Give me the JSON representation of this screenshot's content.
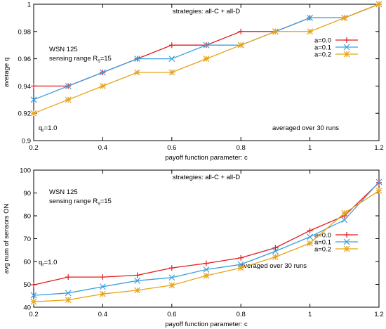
{
  "chart_data": [
    {
      "type": "line",
      "title": "strategies: all-C + all-D",
      "xlabel": "payoff function parameter: c",
      "ylabel": "average q",
      "xlim": [
        0.2,
        1.2
      ],
      "ylim": [
        0.9,
        1.0
      ],
      "xticks": [
        "0.2",
        "0.4",
        "0.6",
        "0.8",
        "1",
        "1.2"
      ],
      "yticks": [
        "0.9",
        "0.92",
        "0.94",
        "0.96",
        "0.98",
        "1"
      ],
      "grid": false,
      "legend_position": "right",
      "annotations": {
        "network": "WSN 125",
        "sensing_prefix": "sensing range R",
        "sensing_sub": "s",
        "sensing_suffix": "=15",
        "qr_prefix": "q",
        "qr_sub": "r",
        "qr_suffix": "=1.0",
        "runs": "averaged over 30 runs"
      },
      "x": [
        0.2,
        0.3,
        0.4,
        0.5,
        0.6,
        0.7,
        0.8,
        0.9,
        1.0,
        1.1,
        1.2
      ],
      "series": [
        {
          "name": "a=0.0",
          "color": "#e41a1c",
          "marker": "plus",
          "values": [
            0.94,
            0.94,
            0.95,
            0.96,
            0.97,
            0.97,
            0.98,
            0.98,
            0.99,
            0.99,
            1.0
          ]
        },
        {
          "name": "a=0.1",
          "color": "#3aa0e0",
          "marker": "cross",
          "values": [
            0.93,
            0.94,
            0.95,
            0.96,
            0.96,
            0.97,
            0.97,
            0.98,
            0.99,
            0.99,
            1.0
          ]
        },
        {
          "name": "a=0.2",
          "color": "#e8a317",
          "marker": "star",
          "values": [
            0.92,
            0.93,
            0.94,
            0.95,
            0.95,
            0.96,
            0.97,
            0.98,
            0.98,
            0.99,
            1.0
          ]
        }
      ]
    },
    {
      "type": "line",
      "title": "strategies: all-C + all-D",
      "xlabel": "payoff function parameter: c",
      "ylabel": "avg num of sensors ON",
      "xlim": [
        0.2,
        1.2
      ],
      "ylim": [
        40,
        100
      ],
      "xticks": [
        "0.2",
        "0.4",
        "0.6",
        "0.8",
        "1",
        "1.2"
      ],
      "yticks": [
        "40",
        "50",
        "60",
        "70",
        "80",
        "90",
        "100"
      ],
      "grid": false,
      "legend_position": "right",
      "annotations": {
        "network": "WSN 125",
        "sensing_prefix": "sensing range R",
        "sensing_sub": "s",
        "sensing_suffix": "=15",
        "qr_prefix": "q",
        "qr_sub": "r",
        "qr_suffix": "=1.0",
        "runs": "averaged over 30 runs"
      },
      "x": [
        0.2,
        0.3,
        0.4,
        0.5,
        0.6,
        0.7,
        0.8,
        0.9,
        1.0,
        1.1,
        1.2
      ],
      "series": [
        {
          "name": "a=0.0",
          "color": "#e41a1c",
          "marker": "plus",
          "values": [
            49.8,
            53.2,
            53.2,
            54.0,
            57.2,
            59.2,
            61.6,
            66.0,
            73.5,
            80.0,
            94.5
          ]
        },
        {
          "name": "a=0.1",
          "color": "#3aa0e0",
          "marker": "cross",
          "values": [
            45.2,
            46.2,
            49.0,
            51.6,
            53.0,
            56.5,
            58.7,
            64.5,
            70.8,
            78.2,
            94.8
          ]
        },
        {
          "name": "a=0.2",
          "color": "#e8a317",
          "marker": "star",
          "values": [
            42.4,
            43.2,
            45.8,
            47.4,
            49.6,
            53.8,
            57.2,
            62.0,
            68.0,
            81.2,
            91.0
          ]
        }
      ]
    }
  ]
}
